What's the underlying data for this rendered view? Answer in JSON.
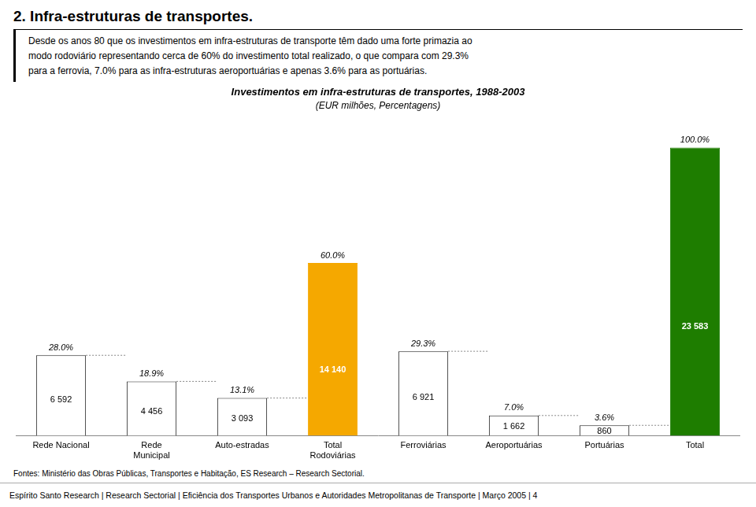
{
  "chart_data": {
    "type": "bar",
    "title": "Investimentos em infra-estruturas de transportes, 1988-2003",
    "subtitle": "(EUR milhões, Percentagens)",
    "categories": [
      "Rede Nacional",
      "Rede\nMunicipal",
      "Auto-estradas",
      "Total\nRodoviárias",
      "Ferroviárias",
      "Aeroportuárias",
      "Portuárias",
      "Total"
    ],
    "values": [
      6592,
      4456,
      3093,
      14140,
      6921,
      1662,
      860,
      23583
    ],
    "value_labels": [
      "6 592",
      "4 456",
      "3 093",
      "14 140",
      "6 921",
      "1 662",
      "860",
      "23 583"
    ],
    "data_labels": true,
    "shares": [
      28.0,
      18.9,
      13.1,
      60.0,
      29.3,
      7.0,
      3.6,
      100.0
    ],
    "share_labels": [
      "28.0%",
      "18.9%",
      "13.1%",
      "60.0%",
      "29.3%",
      "7.0%",
      "3.6%",
      "100.0%"
    ],
    "colors": [
      "#ffffff",
      "#ffffff",
      "#ffffff",
      "#f5a800",
      "#ffffff",
      "#ffffff",
      "#ffffff",
      "#1e7d00"
    ],
    "ylim": [
      0,
      26000
    ],
    "grid": false,
    "tick_labels": "x",
    "annotations": [
      "2. Infra-estruturas de transportes.",
      "Desde os anos 80 que os investimentos em infra-estruturas de transporte têm dado uma forte primazia ao",
      "modo rodoviário representando cerca de 60% do investimento total realizado, o que compara com 29.3%",
      "para a ferrovia, 7.0% para as infra-estruturas aeroportuárias e apenas 3.6% para as portuárias.",
      "Fontes: Ministério das Obras Públicas, Transportes e Habitação, ES Research – Research Sectorial.",
      "Espírito Santo Research  |  Research Sectorial  |  Eficiência dos Transportes Urbanos e Autoridades Metropolitanas de Transporte  |  Março 2005  |  4"
    ]
  }
}
